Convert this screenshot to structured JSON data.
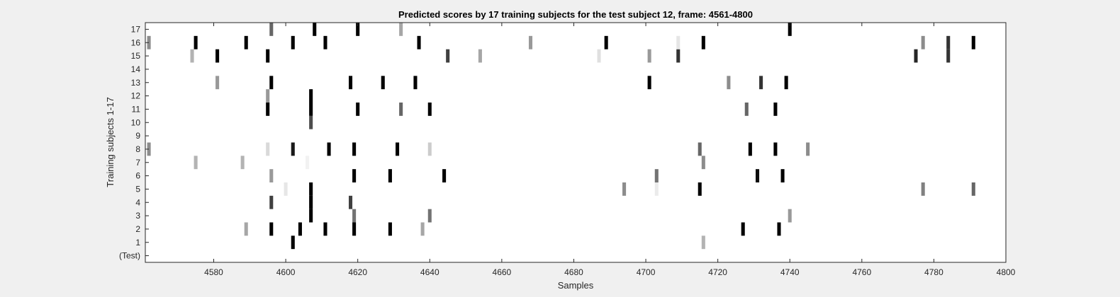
{
  "chart_data": {
    "type": "heatmap",
    "title": "Predicted scores by 17 training subjects for the test subject 12, frame: 4561-4800",
    "xlabel": "Samples",
    "ylabel": "Training subjects 1-17",
    "xlim": [
      4561,
      4800
    ],
    "x_ticks": [
      "4580",
      "4600",
      "4620",
      "4640",
      "4660",
      "4680",
      "4700",
      "4720",
      "4740",
      "4760",
      "4780",
      "4800"
    ],
    "y_tick_labels": [
      "(Test)",
      "1",
      "2",
      "3",
      "4",
      "5",
      "6",
      "7",
      "8",
      "9",
      "10",
      "11",
      "12",
      "13",
      "14",
      "15",
      "16",
      "17"
    ],
    "grid": false,
    "colormap": "gray (white = 0, black = 1)",
    "rows": [
      {
        "row": "(Test)",
        "marks": []
      },
      {
        "row": "1",
        "marks": [
          [
            4602,
            1.0
          ],
          [
            4716,
            0.3
          ]
        ]
      },
      {
        "row": "2",
        "marks": [
          [
            4589,
            0.35
          ],
          [
            4596,
            1.0
          ],
          [
            4604,
            1.0
          ],
          [
            4611,
            1.0
          ],
          [
            4619,
            1.0
          ],
          [
            4629,
            1.0
          ],
          [
            4638,
            0.35
          ],
          [
            4727,
            1.0
          ],
          [
            4737,
            1.0
          ]
        ]
      },
      {
        "row": "3",
        "marks": [
          [
            4607,
            1.0
          ],
          [
            4619,
            0.55
          ],
          [
            4640,
            0.55
          ],
          [
            4740,
            0.4
          ]
        ]
      },
      {
        "row": "4",
        "marks": [
          [
            4596,
            0.75
          ],
          [
            4607,
            1.0
          ],
          [
            4618,
            0.75
          ]
        ]
      },
      {
        "row": "5",
        "marks": [
          [
            4600,
            0.1
          ],
          [
            4607,
            1.0
          ],
          [
            4694,
            0.45
          ],
          [
            4703,
            0.08
          ],
          [
            4715,
            1.0
          ],
          [
            4777,
            0.5
          ],
          [
            4791,
            0.6
          ]
        ]
      },
      {
        "row": "6",
        "marks": [
          [
            4596,
            0.4
          ],
          [
            4619,
            1.0
          ],
          [
            4629,
            1.0
          ],
          [
            4644,
            1.0
          ],
          [
            4703,
            0.55
          ],
          [
            4731,
            0.95
          ],
          [
            4738,
            1.0
          ]
        ]
      },
      {
        "row": "7",
        "marks": [
          [
            4575,
            0.3
          ],
          [
            4588,
            0.3
          ],
          [
            4606,
            0.05
          ],
          [
            4716,
            0.45
          ]
        ]
      },
      {
        "row": "8",
        "marks": [
          [
            4562,
            0.45
          ],
          [
            4595,
            0.15
          ],
          [
            4602,
            0.9
          ],
          [
            4612,
            1.0
          ],
          [
            4619,
            1.0
          ],
          [
            4631,
            1.0
          ],
          [
            4640,
            0.2
          ],
          [
            4715,
            0.6
          ],
          [
            4729,
            1.0
          ],
          [
            4736,
            1.0
          ],
          [
            4745,
            0.45
          ]
        ]
      },
      {
        "row": "9",
        "marks": []
      },
      {
        "row": "10",
        "marks": [
          [
            4607,
            0.7
          ]
        ]
      },
      {
        "row": "11",
        "marks": [
          [
            4595,
            1.0
          ],
          [
            4607,
            1.0
          ],
          [
            4620,
            1.0
          ],
          [
            4632,
            0.6
          ],
          [
            4640,
            1.0
          ],
          [
            4728,
            0.6
          ],
          [
            4736,
            1.0
          ]
        ]
      },
      {
        "row": "12",
        "marks": [
          [
            4595,
            0.4
          ],
          [
            4607,
            1.0
          ]
        ]
      },
      {
        "row": "13",
        "marks": [
          [
            4581,
            0.4
          ],
          [
            4596,
            1.0
          ],
          [
            4618,
            1.0
          ],
          [
            4627,
            1.0
          ],
          [
            4636,
            1.0
          ],
          [
            4701,
            1.0
          ],
          [
            4723,
            0.45
          ],
          [
            4732,
            0.8
          ],
          [
            4739,
            1.0
          ]
        ]
      },
      {
        "row": "14",
        "marks": []
      },
      {
        "row": "15",
        "marks": [
          [
            4574,
            0.3
          ],
          [
            4581,
            1.0
          ],
          [
            4595,
            1.0
          ],
          [
            4645,
            0.75
          ],
          [
            4654,
            0.35
          ],
          [
            4687,
            0.12
          ],
          [
            4701,
            0.4
          ],
          [
            4709,
            0.8
          ],
          [
            4775,
            0.85
          ],
          [
            4784,
            0.8
          ]
        ]
      },
      {
        "row": "16",
        "marks": [
          [
            4562,
            0.45
          ],
          [
            4575,
            1.0
          ],
          [
            4589,
            1.0
          ],
          [
            4602,
            1.0
          ],
          [
            4611,
            1.0
          ],
          [
            4637,
            1.0
          ],
          [
            4668,
            0.4
          ],
          [
            4689,
            1.0
          ],
          [
            4709,
            0.1
          ],
          [
            4716,
            1.0
          ],
          [
            4777,
            0.45
          ],
          [
            4784,
            0.8
          ],
          [
            4791,
            1.0
          ]
        ]
      },
      {
        "row": "17",
        "marks": [
          [
            4596,
            0.6
          ],
          [
            4608,
            1.0
          ],
          [
            4620,
            1.0
          ],
          [
            4632,
            0.35
          ],
          [
            4740,
            1.0
          ]
        ]
      }
    ]
  }
}
